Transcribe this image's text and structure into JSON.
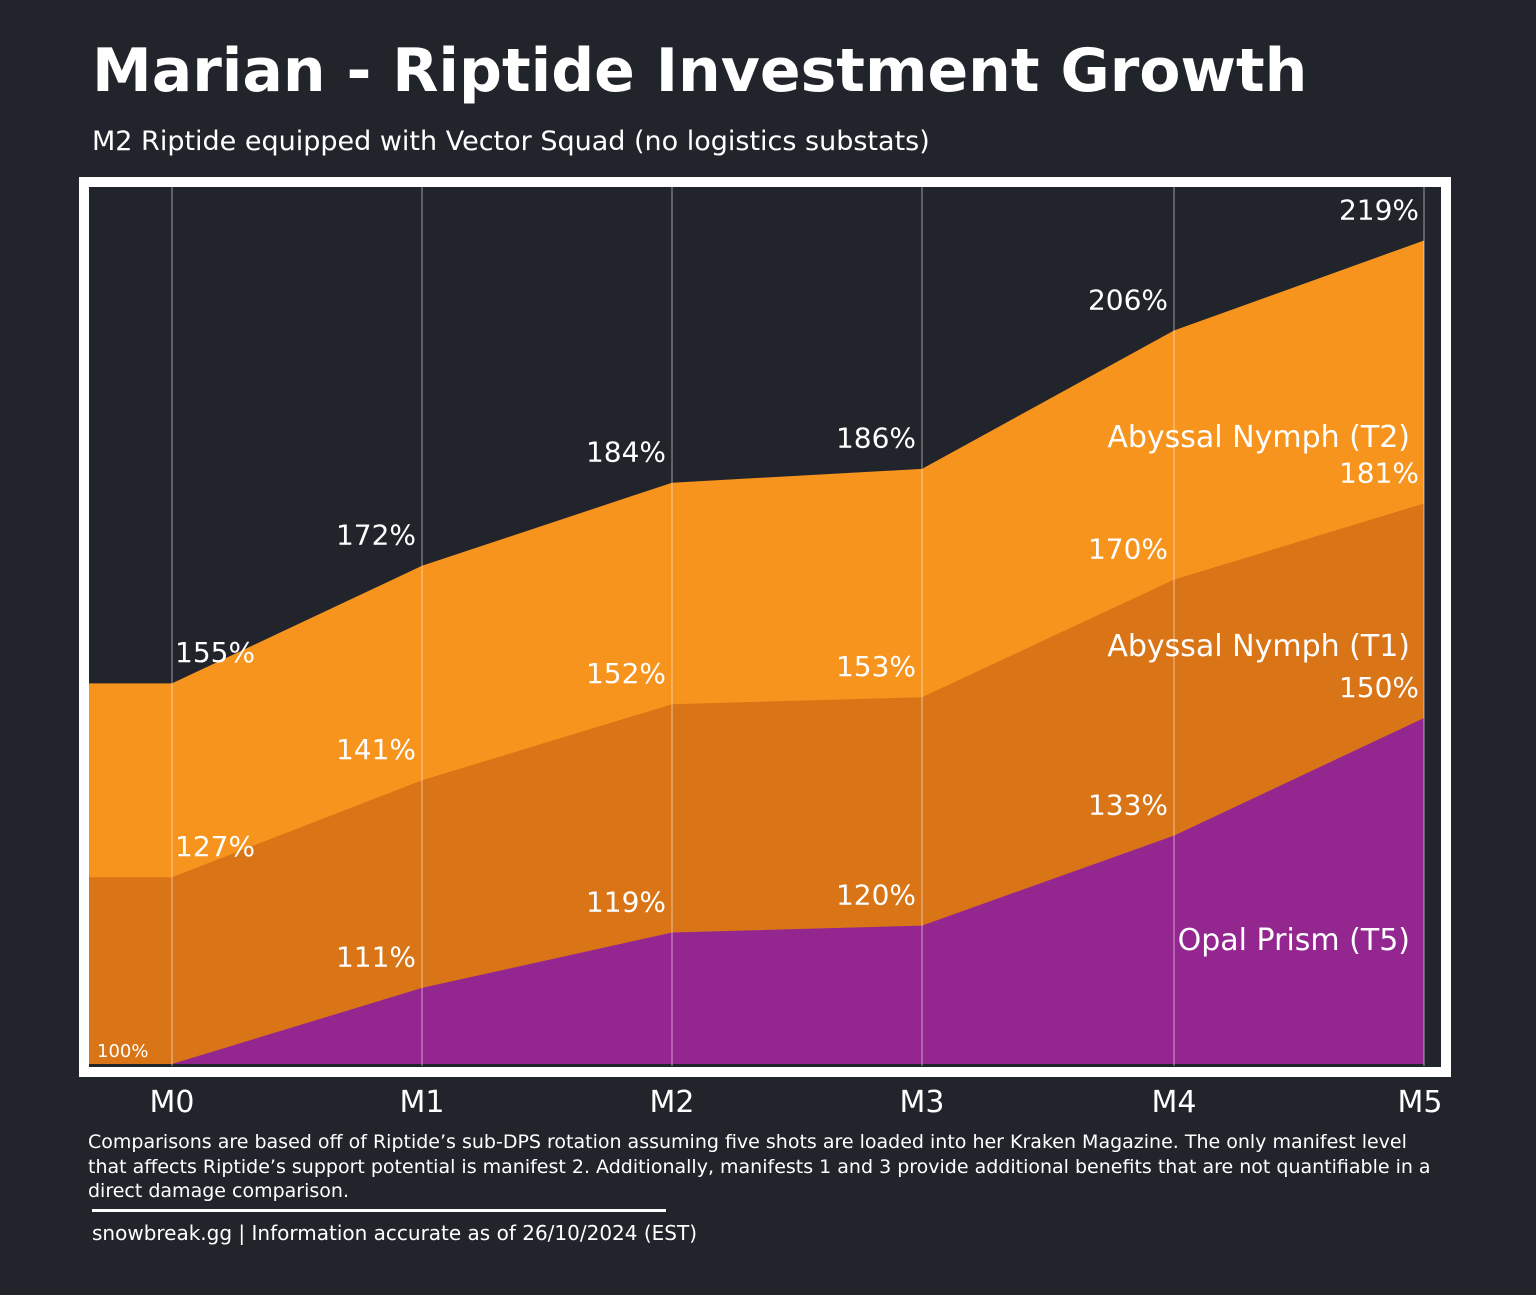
{
  "chart_data": {
    "type": "area",
    "title": "Marian - Riptide Investment Growth",
    "subtitle": "M2 Riptide equipped with Vector Squad (no logistics substats)",
    "categories": [
      "M0",
      "M1",
      "M2",
      "M3",
      "M4",
      "M5"
    ],
    "baseline_label": "100%",
    "ylim": [
      100,
      230
    ],
    "series": [
      {
        "name": "Opal Prism (T5)",
        "values": [
          100,
          111,
          119,
          120,
          133,
          150
        ],
        "labels": [
          "",
          "111%",
          "119%",
          "120%",
          "133%",
          "150%"
        ],
        "color": "#93278f"
      },
      {
        "name": "Abyssal Nymph (T1)",
        "values": [
          127,
          141,
          152,
          153,
          170,
          181
        ],
        "labels": [
          "127%",
          "141%",
          "152%",
          "153%",
          "170%",
          "181%"
        ],
        "color": "#d97516"
      },
      {
        "name": "Abyssal Nymph (T2)",
        "values": [
          155,
          172,
          184,
          186,
          206,
          219
        ],
        "labels": [
          "155%",
          "172%",
          "184%",
          "186%",
          "206%",
          "219%"
        ],
        "color": "#f7941d"
      }
    ],
    "background_color": "#21252b",
    "frame_color": "#ffffff"
  },
  "footnote": "Comparisons are based off of Riptide’s sub-DPS rotation assuming five shots are loaded into her Kraken Magazine. The only manifest level that affects Riptide’s support potential is manifest 2. Additionally, manifests 1 and 3 provide additional benefits that are not quantifiable in a direct damage comparison.",
  "source": "snowbreak.gg | Information accurate as of 26/10/2024 (EST)"
}
